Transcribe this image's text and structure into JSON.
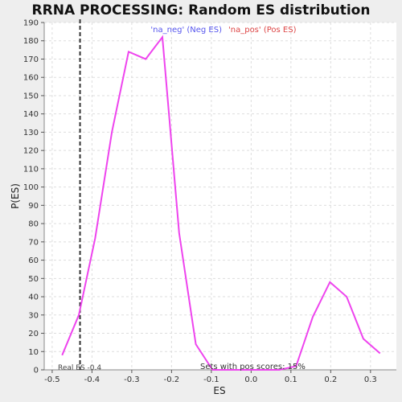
{
  "chart_data": {
    "type": "line",
    "title": "RRNA PROCESSING: Random ES distribution",
    "xlabel": "ES",
    "ylabel": "P(ES)",
    "xlim": [
      -0.52,
      0.365
    ],
    "ylim": [
      0,
      190
    ],
    "xticks": [
      -0.5,
      -0.4,
      -0.3,
      -0.2,
      -0.1,
      0.0,
      0.1,
      0.2,
      0.3
    ],
    "xtick_labels": [
      "-0.5",
      "-0.4",
      "-0.3",
      "-0.2",
      "-0.1",
      "0.0",
      "0.1",
      "0.2",
      "0.3"
    ],
    "yticks": [
      0,
      10,
      20,
      30,
      40,
      50,
      60,
      70,
      80,
      90,
      100,
      110,
      120,
      130,
      140,
      150,
      160,
      170,
      180,
      190
    ],
    "ytick_labels": [
      "0",
      "10",
      "20",
      "30",
      "40",
      "50",
      "60",
      "70",
      "80",
      "90",
      "100",
      "110",
      "120",
      "130",
      "140",
      "150",
      "160",
      "170",
      "180",
      "190"
    ],
    "grid": true,
    "series": [
      {
        "color": "#ee44ee",
        "x": [
          -0.475,
          -0.433,
          -0.392,
          -0.35,
          -0.308,
          -0.265,
          -0.223,
          -0.181,
          -0.139,
          -0.097,
          -0.055,
          -0.013,
          0.029,
          0.071,
          0.113,
          0.155,
          0.198,
          0.24,
          0.282,
          0.324
        ],
        "y": [
          8,
          30,
          72,
          130,
          174,
          170,
          182,
          75,
          14,
          0,
          0,
          0,
          0,
          0,
          2,
          29,
          48,
          40,
          17,
          9
        ]
      }
    ],
    "vline": {
      "x": -0.43,
      "color": "#333333",
      "style": "dashed"
    },
    "legend": [
      {
        "label": "'na_neg' (Neg ES)",
        "color": "#5555ee"
      },
      {
        "label": "'na_pos' (Pos ES)",
        "color": "#dd4444"
      }
    ],
    "annotations": {
      "real_es": "Real ES -0.4",
      "pos_scores": "Sets with pos scores: 15%"
    }
  }
}
